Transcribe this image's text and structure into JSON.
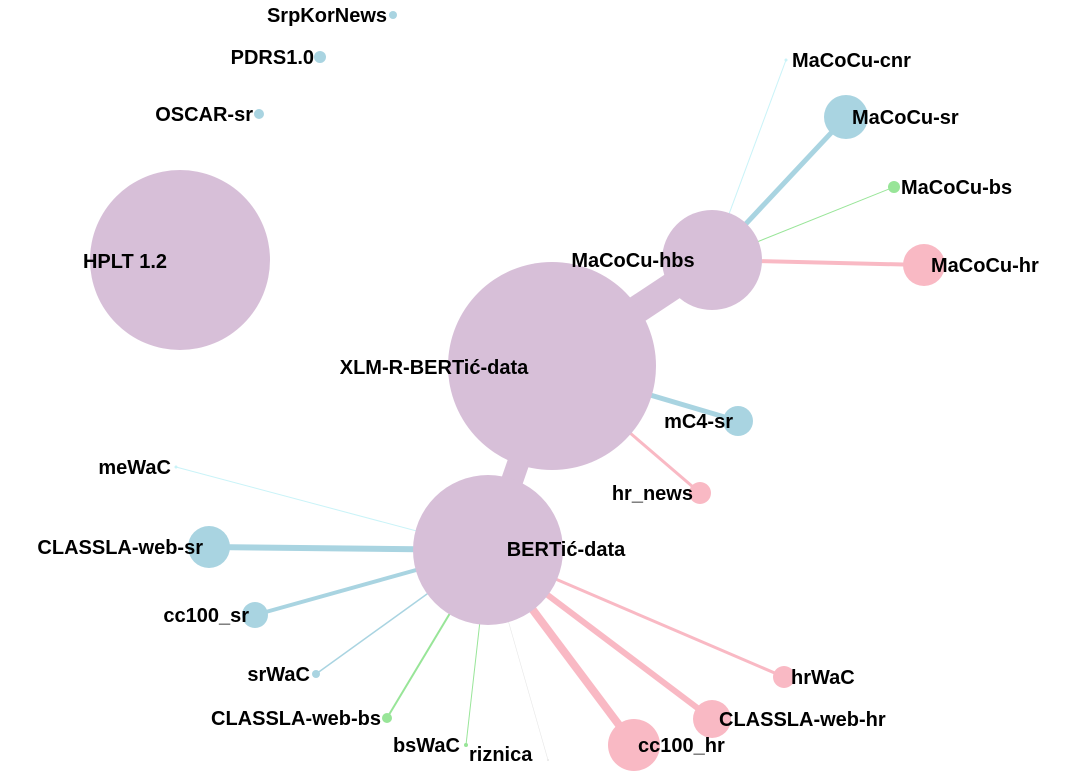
{
  "colors": {
    "mixed": "#d7bfd8",
    "serbian": "#a9d4e1",
    "bosnian": "#98e598",
    "croatian": "#f9b9c4",
    "montenegrin": "#c9f3f8",
    "unspecified": "#e7e7e7"
  },
  "nodes": [
    {
      "id": "hplt",
      "label": "HPLT 1.2",
      "group": "mixed"
    },
    {
      "id": "xlmr",
      "label": "XLM-R-BERTić-data",
      "group": "mixed"
    },
    {
      "id": "macocu_hbs",
      "label": "MaCoCu-hbs",
      "group": "mixed"
    },
    {
      "id": "bertic",
      "label": "BERTić-data",
      "group": "mixed"
    },
    {
      "id": "srpkor",
      "label": "SrpKorNews",
      "group": "serbian"
    },
    {
      "id": "pdrs",
      "label": "PDRS1.0",
      "group": "serbian"
    },
    {
      "id": "oscar",
      "label": "OSCAR-sr",
      "group": "serbian"
    },
    {
      "id": "macocu_cnr",
      "label": "MaCoCu-cnr",
      "group": "montenegrin"
    },
    {
      "id": "macocu_sr",
      "label": "MaCoCu-sr",
      "group": "serbian"
    },
    {
      "id": "macocu_bs",
      "label": "MaCoCu-bs",
      "group": "bosnian"
    },
    {
      "id": "macocu_hr",
      "label": "MaCoCu-hr",
      "group": "croatian"
    },
    {
      "id": "mc4",
      "label": "mC4-sr",
      "group": "serbian"
    },
    {
      "id": "hrnews",
      "label": "hr_news",
      "group": "croatian"
    },
    {
      "id": "mewac",
      "label": "meWaC",
      "group": "montenegrin"
    },
    {
      "id": "classla_sr",
      "label": "CLASSLA-web-sr",
      "group": "serbian"
    },
    {
      "id": "cc100_sr",
      "label": "cc100_sr",
      "group": "serbian"
    },
    {
      "id": "srwac",
      "label": "srWaC",
      "group": "serbian"
    },
    {
      "id": "classla_bs",
      "label": "CLASSLA-web-bs",
      "group": "bosnian"
    },
    {
      "id": "bswac",
      "label": "bsWaC",
      "group": "bosnian"
    },
    {
      "id": "riznica",
      "label": "riznica",
      "group": "unspecified"
    },
    {
      "id": "cc100_hr",
      "label": "cc100_hr",
      "group": "croatian"
    },
    {
      "id": "classla_hr",
      "label": "CLASSLA-web-hr",
      "group": "croatian"
    },
    {
      "id": "hrwac",
      "label": "hrWaC",
      "group": "croatian"
    }
  ],
  "edges": [
    {
      "source": "xlmr",
      "target": "macocu_hbs",
      "color": "mixed"
    },
    {
      "source": "xlmr",
      "target": "bertic",
      "color": "mixed"
    },
    {
      "source": "macocu_hbs",
      "target": "macocu_cnr",
      "color": "montenegrin"
    },
    {
      "source": "macocu_hbs",
      "target": "macocu_sr",
      "color": "serbian"
    },
    {
      "source": "macocu_hbs",
      "target": "macocu_bs",
      "color": "bosnian"
    },
    {
      "source": "macocu_hbs",
      "target": "macocu_hr",
      "color": "croatian"
    },
    {
      "source": "xlmr",
      "target": "mc4",
      "color": "serbian"
    },
    {
      "source": "xlmr",
      "target": "hrnews",
      "color": "croatian"
    },
    {
      "source": "bertic",
      "target": "mewac",
      "color": "montenegrin"
    },
    {
      "source": "bertic",
      "target": "classla_sr",
      "color": "serbian"
    },
    {
      "source": "bertic",
      "target": "cc100_sr",
      "color": "serbian"
    },
    {
      "source": "bertic",
      "target": "srwac",
      "color": "serbian"
    },
    {
      "source": "bertic",
      "target": "classla_bs",
      "color": "bosnian"
    },
    {
      "source": "bertic",
      "target": "bswac",
      "color": "bosnian"
    },
    {
      "source": "bertic",
      "target": "riznica",
      "color": "unspecified"
    },
    {
      "source": "bertic",
      "target": "cc100_hr",
      "color": "croatian"
    },
    {
      "source": "bertic",
      "target": "classla_hr",
      "color": "croatian"
    },
    {
      "source": "bertic",
      "target": "hrwac",
      "color": "croatian"
    }
  ]
}
